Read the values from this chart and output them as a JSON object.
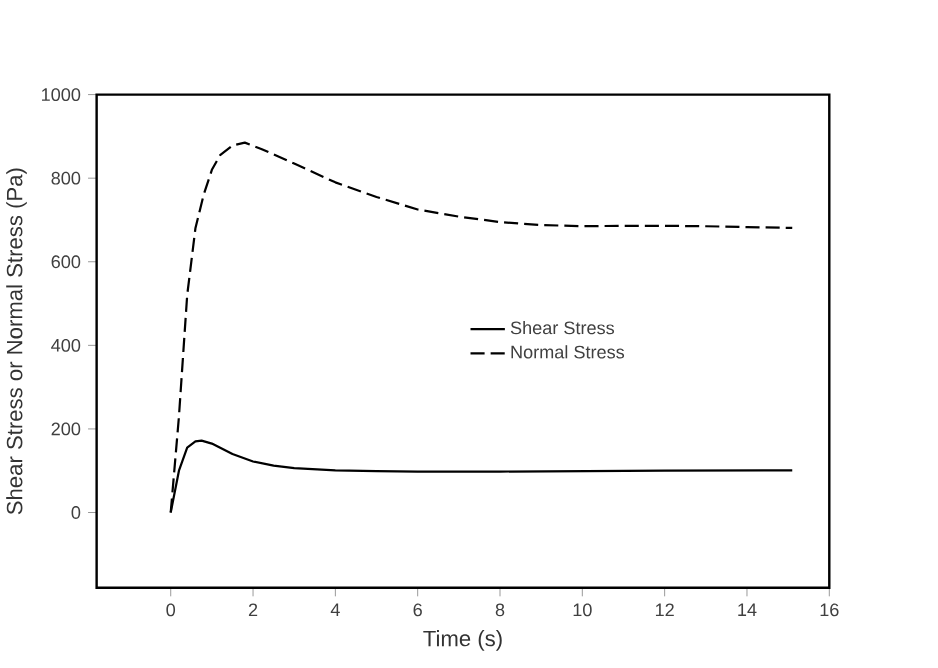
{
  "chart_data": {
    "type": "line",
    "xlabel": "Time (s)",
    "ylabel": "Shear Stress or Normal Stress (Pa)",
    "xlim": [
      -1.8,
      16
    ],
    "ylim": [
      -180,
      1000
    ],
    "xticks": [
      0,
      2,
      4,
      6,
      8,
      10,
      12,
      14,
      16
    ],
    "yticks": [
      0,
      200,
      400,
      600,
      800,
      1000
    ],
    "grid": false,
    "legend": "right",
    "marker": "none",
    "series": [
      {
        "name": "Shear Stress",
        "color": "#000000",
        "line_style": "solid",
        "x": [
          0,
          0.2,
          0.4,
          0.6,
          0.75,
          1,
          1.5,
          2,
          2.5,
          3,
          4,
          5,
          6,
          8,
          10,
          12,
          15.1
        ],
        "values": [
          0,
          100,
          155,
          170,
          172,
          165,
          140,
          122,
          112,
          106,
          101,
          99,
          98,
          98,
          99,
          100,
          101
        ]
      },
      {
        "name": "Normal Stress",
        "color": "#000000",
        "line_style": "dashed",
        "x": [
          0,
          0.2,
          0.4,
          0.6,
          0.8,
          1,
          1.2,
          1.5,
          1.8,
          2.2,
          3,
          4,
          5,
          6,
          7,
          8,
          9,
          10,
          11,
          12,
          13,
          14,
          15.1
        ],
        "values": [
          0,
          230,
          520,
          680,
          760,
          820,
          855,
          878,
          885,
          870,
          835,
          790,
          755,
          725,
          708,
          695,
          688,
          685,
          686,
          686,
          685,
          683,
          681
        ]
      }
    ]
  }
}
